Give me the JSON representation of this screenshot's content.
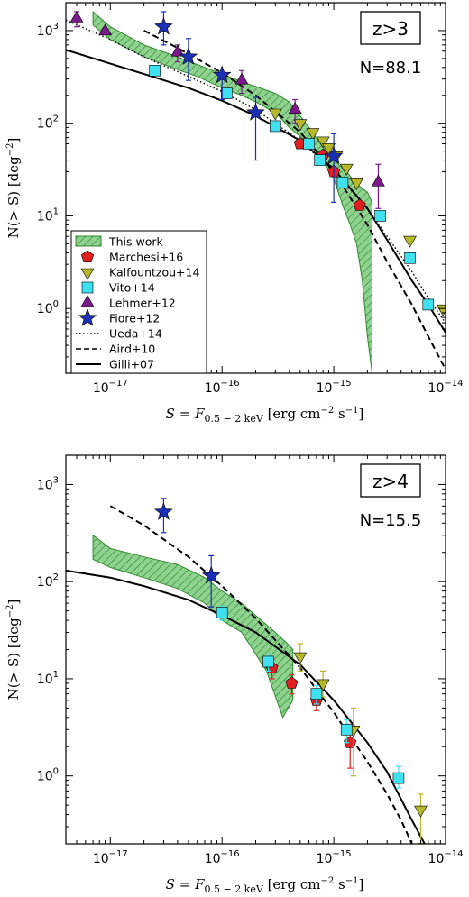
{
  "figure": {
    "colors": {
      "band_fill": "#8fd18f",
      "band_edge": "#2f8a2f",
      "marchesi": "#e02020",
      "kalfountzou": "#b5b82a",
      "vito": "#3fe0f0",
      "lehmer": "#7b1a8c",
      "fiore": "#1a2fb5",
      "model_line": "#000000"
    }
  },
  "chart_data": [
    {
      "type": "scatter",
      "panel": "top",
      "xscale": "log",
      "yscale": "log",
      "xlim": [
        4e-18,
        1e-14
      ],
      "ylim": [
        0.2,
        2000
      ],
      "xlabel": "S = F_{0.5-2 keV} [erg cm^-2 s^-1]",
      "xlabel_text": {
        "lhs": "S",
        "eq": " = ",
        "F": "F",
        "sub": "0.5 − 2 keV",
        "units": " [erg cm",
        "exp1": "−2",
        "s": " s",
        "exp2": "−1",
        "close": "]"
      },
      "ylabel_text": {
        "main": "N(> S) [deg",
        "exp": "−2",
        "close": "]"
      },
      "xticks": [
        1e-17,
        1e-16,
        1e-15,
        1e-14
      ],
      "xtick_labels": [
        {
          "b": "10",
          "e": "−17"
        },
        {
          "b": "10",
          "e": "−16"
        },
        {
          "b": "10",
          "e": "−15"
        },
        {
          "b": "10",
          "e": "−14"
        }
      ],
      "yticks": [
        1,
        10,
        100,
        1000
      ],
      "ytick_labels": [
        {
          "b": "10",
          "e": "0"
        },
        {
          "b": "10",
          "e": "1"
        },
        {
          "b": "10",
          "e": "2"
        },
        {
          "b": "10",
          "e": "3"
        }
      ],
      "label_box": "z>3",
      "annotation": "N=88.1",
      "legend_position": "lower-left",
      "legend": [
        {
          "key": "band",
          "label": "This work"
        },
        {
          "key": "marchesi",
          "label": "Marchesi+16"
        },
        {
          "key": "kalfountzou",
          "label": "Kalfountzou+14"
        },
        {
          "key": "vito",
          "label": "Vito+14"
        },
        {
          "key": "lehmer",
          "label": "Lehmer+12"
        },
        {
          "key": "fiore",
          "label": "Fiore+12"
        },
        {
          "key": "ueda",
          "label": "Ueda+14"
        },
        {
          "key": "aird",
          "label": "Aird+10"
        },
        {
          "key": "gilli",
          "label": "Gilli+07"
        }
      ],
      "band": {
        "upper": [
          [
            7e-18,
            1600
          ],
          [
            1e-17,
            1100
          ],
          [
            2e-17,
            700
          ],
          [
            4e-17,
            520
          ],
          [
            6e-17,
            430
          ],
          [
            1e-16,
            340
          ],
          [
            1.5e-16,
            280
          ],
          [
            2e-16,
            250
          ],
          [
            3e-16,
            210
          ],
          [
            4e-16,
            170
          ],
          [
            5e-16,
            120
          ],
          [
            6e-16,
            90
          ],
          [
            8e-16,
            55
          ],
          [
            1e-15,
            40
          ],
          [
            1.3e-15,
            30
          ],
          [
            1.6e-15,
            22
          ],
          [
            2e-15,
            18
          ],
          [
            2.2e-15,
            14
          ]
        ],
        "lower": [
          [
            2.2e-15,
            0.2
          ],
          [
            2e-15,
            0.5
          ],
          [
            1.8e-15,
            2
          ],
          [
            1.6e-15,
            5
          ],
          [
            1.4e-15,
            8
          ],
          [
            1.2e-15,
            13
          ],
          [
            1e-15,
            25
          ],
          [
            8e-16,
            40
          ],
          [
            6e-16,
            60
          ],
          [
            4e-16,
            90
          ],
          [
            3e-16,
            130
          ],
          [
            2e-16,
            170
          ],
          [
            1.5e-16,
            200
          ],
          [
            1e-16,
            240
          ],
          [
            6e-17,
            320
          ],
          [
            4e-17,
            380
          ],
          [
            2e-17,
            520
          ],
          [
            1e-17,
            800
          ],
          [
            7e-18,
            1150
          ]
        ]
      },
      "curves": {
        "gilli": [
          [
            4e-18,
            620
          ],
          [
            1e-17,
            440
          ],
          [
            2e-17,
            340
          ],
          [
            5e-17,
            240
          ],
          [
            1e-16,
            175
          ],
          [
            2e-16,
            120
          ],
          [
            5e-16,
            65
          ],
          [
            1e-15,
            32
          ],
          [
            2e-15,
            12
          ],
          [
            3e-15,
            5.5
          ],
          [
            5e-15,
            2
          ],
          [
            7e-15,
            1.1
          ],
          [
            1e-14,
            0.55
          ]
        ],
        "aird": [
          [
            2e-17,
            1000
          ],
          [
            4e-17,
            650
          ],
          [
            1e-16,
            350
          ],
          [
            2e-16,
            200
          ],
          [
            5e-16,
            80
          ],
          [
            1e-15,
            30
          ],
          [
            2e-15,
            8
          ],
          [
            3e-15,
            3.2
          ],
          [
            5e-15,
            1.1
          ],
          [
            7e-15,
            0.5
          ],
          [
            1e-14,
            0.22
          ]
        ],
        "ueda": [
          [
            4e-18,
            1300
          ],
          [
            1e-17,
            800
          ],
          [
            2e-17,
            520
          ],
          [
            5e-17,
            320
          ],
          [
            1e-16,
            220
          ],
          [
            2e-16,
            140
          ],
          [
            5e-16,
            65
          ],
          [
            1e-15,
            30
          ],
          [
            2e-15,
            12
          ],
          [
            3e-15,
            6
          ],
          [
            5e-15,
            2.5
          ],
          [
            7e-15,
            1.3
          ],
          [
            1e-14,
            0.7
          ]
        ]
      },
      "series": [
        {
          "name": "Marchesi+16",
          "marker": "pentagon",
          "x": [
            5e-16,
            8e-16,
            1e-15,
            1.7e-15
          ],
          "y": [
            60,
            45,
            30,
            13
          ],
          "yerr_lo": [
            0,
            0,
            0,
            0
          ],
          "yerr_hi": [
            0,
            0,
            0,
            0
          ]
        },
        {
          "name": "Kalfountzou+14",
          "marker": "tri_down",
          "x": [
            3e-16,
            5e-16,
            6.5e-16,
            8e-16,
            9e-16,
            1.05e-15,
            1.3e-15,
            1.6e-15,
            4.8e-15,
            9.5e-15
          ],
          "y": [
            130,
            100,
            80,
            65,
            55,
            45,
            33,
            23,
            5.5,
            1.0
          ],
          "yerr_lo": [
            0,
            0,
            0,
            0,
            0,
            0,
            0,
            0,
            0,
            0
          ],
          "yerr_hi": [
            0,
            0,
            0,
            0,
            0,
            0,
            0,
            0,
            0,
            0
          ]
        },
        {
          "name": "Vito+14",
          "marker": "square",
          "x": [
            2.5e-17,
            1.1e-16,
            3e-16,
            6e-16,
            7.5e-16,
            1.2e-15,
            2.6e-15,
            4.8e-15,
            7e-15
          ],
          "y": [
            370,
            210,
            93,
            60,
            40,
            23,
            10,
            3.5,
            1.1
          ],
          "yerr_lo": [
            0,
            0,
            0,
            0,
            0,
            0,
            0,
            0,
            0
          ],
          "yerr_hi": [
            0,
            0,
            0,
            0,
            0,
            0,
            0,
            0,
            0
          ]
        },
        {
          "name": "Lehmer+12",
          "marker": "tri_up",
          "x": [
            5e-18,
            9e-18,
            4e-17,
            1.5e-16,
            4.5e-16,
            2.5e-15
          ],
          "y": [
            1350,
            980,
            580,
            290,
            140,
            23
          ],
          "yerr_lo": [
            250,
            0,
            120,
            80,
            40,
            11
          ],
          "yerr_hi": [
            250,
            0,
            120,
            80,
            40,
            13
          ]
        },
        {
          "name": "Fiore+12",
          "marker": "star",
          "x": [
            3e-17,
            5e-17,
            1e-16,
            2e-16,
            1e-15
          ],
          "y": [
            1100,
            520,
            330,
            130,
            44
          ],
          "yerr_lo": [
            400,
            230,
            150,
            90,
            30
          ],
          "yerr_hi": [
            500,
            300,
            0,
            60,
            33
          ]
        }
      ]
    },
    {
      "type": "scatter",
      "panel": "bottom",
      "xscale": "log",
      "yscale": "log",
      "xlim": [
        4e-18,
        1e-14
      ],
      "ylim": [
        0.2,
        2000
      ],
      "xlabel": "S = F_{0.5-2 keV} [erg cm^-2 s^-1]",
      "xlabel_text": {
        "lhs": "S",
        "eq": " = ",
        "F": "F",
        "sub": "0.5 − 2 keV",
        "units": " [erg cm",
        "exp1": "−2",
        "s": " s",
        "exp2": "−1",
        "close": "]"
      },
      "ylabel_text": {
        "main": "N(> S) [deg",
        "exp": "−2",
        "close": "]"
      },
      "xticks": [
        1e-17,
        1e-16,
        1e-15,
        1e-14
      ],
      "xtick_labels": [
        {
          "b": "10",
          "e": "−17"
        },
        {
          "b": "10",
          "e": "−16"
        },
        {
          "b": "10",
          "e": "−15"
        },
        {
          "b": "10",
          "e": "−14"
        }
      ],
      "yticks": [
        1,
        10,
        100,
        1000
      ],
      "ytick_labels": [
        {
          "b": "10",
          "e": "0"
        },
        {
          "b": "10",
          "e": "1"
        },
        {
          "b": "10",
          "e": "2"
        },
        {
          "b": "10",
          "e": "3"
        }
      ],
      "label_box": "z>4",
      "annotation": "N=15.5",
      "band": {
        "upper": [
          [
            7e-18,
            300
          ],
          [
            1e-17,
            220
          ],
          [
            2e-17,
            180
          ],
          [
            4e-17,
            150
          ],
          [
            7e-17,
            110
          ],
          [
            1e-16,
            80
          ],
          [
            1.5e-16,
            60
          ],
          [
            2e-16,
            45
          ],
          [
            3e-16,
            30
          ],
          [
            4e-16,
            22
          ],
          [
            4.3e-16,
            20
          ]
        ],
        "lower": [
          [
            4.3e-16,
            6
          ],
          [
            3.5e-16,
            4
          ],
          [
            2.5e-16,
            12
          ],
          [
            1.5e-16,
            30
          ],
          [
            1e-16,
            40
          ],
          [
            7e-17,
            60
          ],
          [
            4e-17,
            85
          ],
          [
            2e-17,
            110
          ],
          [
            1e-17,
            140
          ],
          [
            7e-18,
            170
          ]
        ]
      },
      "curves": {
        "gilli": [
          [
            4e-18,
            130
          ],
          [
            1e-17,
            110
          ],
          [
            2e-17,
            90
          ],
          [
            5e-17,
            65
          ],
          [
            1e-16,
            45
          ],
          [
            2e-16,
            30
          ],
          [
            5e-16,
            14
          ],
          [
            1e-15,
            6
          ],
          [
            2e-15,
            2.2
          ],
          [
            3e-15,
            1.1
          ],
          [
            5e-15,
            0.35
          ],
          [
            6.5e-15,
            0.2
          ]
        ],
        "aird": [
          [
            1e-17,
            600
          ],
          [
            2e-17,
            380
          ],
          [
            5e-17,
            180
          ],
          [
            1e-16,
            90
          ],
          [
            2e-16,
            42
          ],
          [
            5e-16,
            13
          ],
          [
            1e-15,
            4.5
          ],
          [
            2e-15,
            1.4
          ],
          [
            3e-15,
            0.65
          ],
          [
            4e-15,
            0.35
          ],
          [
            5e-15,
            0.2
          ]
        ]
      },
      "series": [
        {
          "name": "Marchesi+16",
          "marker": "pentagon",
          "x": [
            2.8e-16,
            4.2e-16,
            7e-16,
            1.4e-15
          ],
          "y": [
            13,
            9,
            6,
            2.2
          ],
          "yerr_lo": [
            3,
            2,
            1.3,
            1
          ],
          "yerr_hi": [
            3,
            2,
            1.3,
            1.2
          ]
        },
        {
          "name": "Kalfountzou+14",
          "marker": "tri_down",
          "x": [
            5e-16,
            8e-16,
            1.5e-15,
            6e-15
          ],
          "y": [
            17,
            9,
            3,
            0.45
          ],
          "yerr_lo": [
            5,
            2.5,
            2,
            0.25
          ],
          "yerr_hi": [
            6,
            3,
            2,
            0.2
          ]
        },
        {
          "name": "Vito+14",
          "marker": "square",
          "x": [
            1e-16,
            2.6e-16,
            7e-16,
            1.3e-15,
            3.8e-15
          ],
          "y": [
            48,
            15,
            7,
            3,
            0.95
          ],
          "yerr_lo": [
            8,
            3,
            1.5,
            0.8,
            0.2
          ],
          "yerr_hi": [
            8,
            3,
            1.5,
            0.8,
            0.3
          ]
        },
        {
          "name": "Fiore+12",
          "marker": "star",
          "x": [
            3e-17,
            8e-17
          ],
          "y": [
            520,
            115
          ],
          "yerr_lo": [
            200,
            60
          ],
          "yerr_hi": [
            200,
            70
          ]
        }
      ]
    }
  ]
}
